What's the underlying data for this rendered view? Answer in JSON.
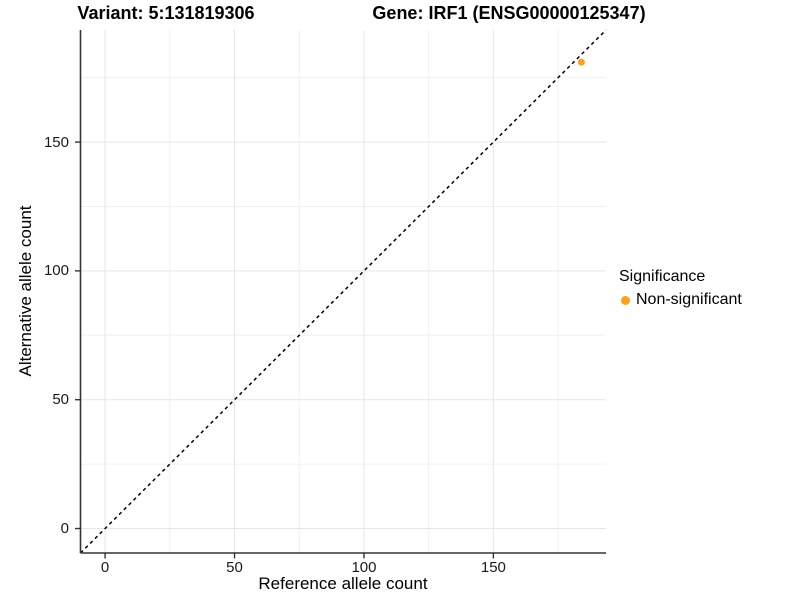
{
  "chart_data": {
    "type": "scatter",
    "titles": {
      "left": "Variant: 5:131819306",
      "right": "Gene: IRF1 (ENSG00000125347)"
    },
    "xlabel": "Reference allele count",
    "ylabel": "Alternative allele count",
    "xlim": [
      -9.5,
      193.5
    ],
    "ylim": [
      -9.5,
      193.5
    ],
    "x_ticks": [
      0,
      50,
      100,
      150
    ],
    "y_ticks": [
      0,
      50,
      100,
      150
    ],
    "minor_gridlines": [
      25,
      75,
      125,
      175
    ],
    "grid": "on",
    "reference_line": {
      "style": "dashed",
      "slope": 1,
      "intercept": 0,
      "color": "#000000"
    },
    "series": [
      {
        "name": "Non-significant",
        "color": "#FCA119",
        "points": [
          {
            "x": 184,
            "y": 181
          }
        ]
      }
    ],
    "legend": {
      "title": "Significance",
      "position": "right",
      "items": [
        {
          "label": "Non-significant",
          "color": "#FCA119"
        }
      ]
    },
    "colors": {
      "background": "#ffffff",
      "major_grid": "#e5e5e5",
      "minor_grid": "#f0f0f0",
      "axis_line": "#333333",
      "tick_text": "#1a1a1a",
      "point": "#FCA119"
    }
  }
}
